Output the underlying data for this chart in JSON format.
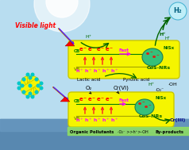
{
  "bg_sky": "#b8ddf0",
  "bg_water": "#5080a8",
  "nanorod_color": "#f5f500",
  "nanorod_edge": "#c8c800",
  "nisx_color": "#30b870",
  "nisx_edge": "#208040",
  "h2_bubble_color": "#b0f0f8",
  "visible_light_label": "Visible light",
  "h2_label": "H₂",
  "cb_label": "CB",
  "vb_label": "VB",
  "cds_label": "CdS-NRs",
  "nisx_label": "NiSx",
  "fast_label": "Fast",
  "lactic_acid": "Lactic acid",
  "pyruvic_acid": "Pyruvic acid",
  "organic_pollutants": "Organic Pollutants",
  "by_products": "By-products",
  "cr6_label": "Cr(VI)",
  "cr3_label": "Cr(III)",
  "o2_label": "O₂",
  "oh_label": "·OH",
  "o2_radical": "·O₂⁻",
  "bottom_text": "·O₂⁻ >>h⁺>-OH",
  "h_plus": "H⁺"
}
